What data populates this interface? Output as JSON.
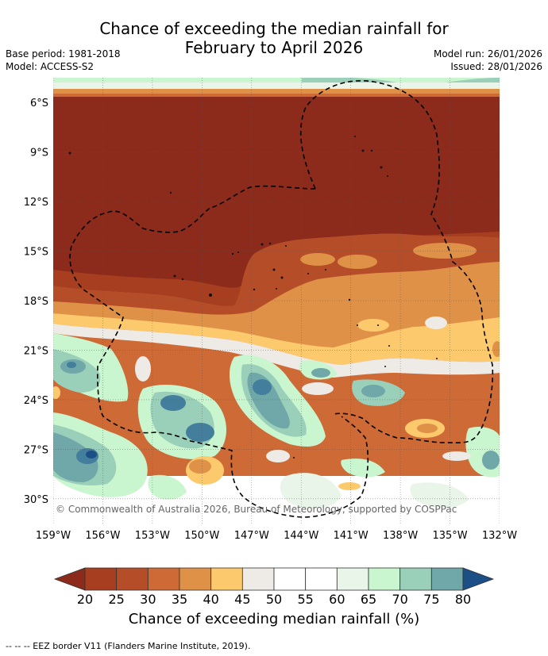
{
  "title_line1": "Chance of exceeding the median rainfall for",
  "title_line2": "February to April 2026",
  "meta_left": {
    "base_period": "Base period: 1981-2018",
    "model": "Model: ACCESS-S2"
  },
  "meta_right": {
    "model_run": "Model run: 26/01/2026",
    "issued": "Issued: 28/01/2026"
  },
  "map": {
    "lat_labels": [
      "6°S",
      "9°S",
      "12°S",
      "15°S",
      "18°S",
      "21°S",
      "24°S",
      "27°S",
      "30°S"
    ],
    "lon_labels": [
      "159°W",
      "156°W",
      "153°W",
      "150°W",
      "147°W",
      "144°W",
      "141°W",
      "138°W",
      "135°W",
      "132°W"
    ],
    "copyright": "© Commonwealth of Australia 2026, Bureau of Meteorology, supported by COSPPac",
    "colors": {
      "c20": "#a63e1f",
      "c25": "#b54e28",
      "c30": "#cd6a35",
      "c35": "#df9147",
      "c40": "#fdc96d",
      "c45": "#eeebe6",
      "c50": "#ffffff",
      "c55": "#ffffff",
      "c60": "#e8f5e8",
      "c65": "#c9f5cf",
      "c70": "#9acfb9",
      "c75": "#70a7a8",
      "c80": "#447e9d",
      "c_above": "#1c4f86",
      "c_below": "#8c2b1c"
    }
  },
  "colorbar": {
    "labels": [
      "20",
      "25",
      "30",
      "35",
      "40",
      "45",
      "50",
      "55",
      "60",
      "65",
      "70",
      "75",
      "80"
    ],
    "title": "Chance of exceeding median rainfall (%)"
  },
  "footer": "--  --  -- EEZ border V11 (Flanders Marine Institute, 2019)."
}
